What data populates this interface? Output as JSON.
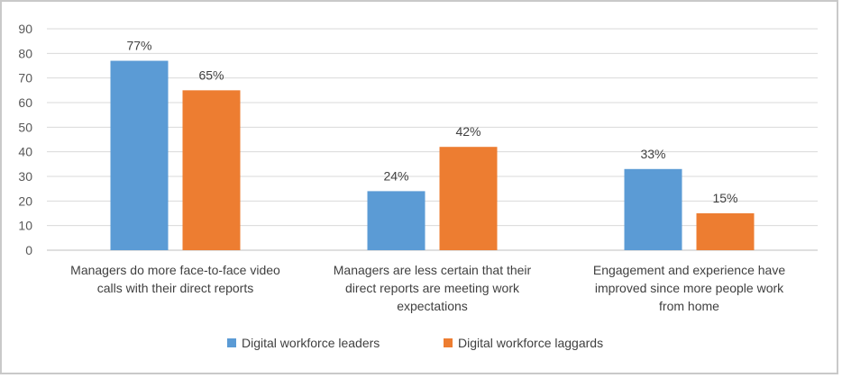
{
  "chart_data": {
    "type": "bar",
    "title": "",
    "xlabel": "",
    "ylabel": "",
    "ylim": [
      0,
      90
    ],
    "yticks": [
      0,
      10,
      20,
      30,
      40,
      50,
      60,
      70,
      80,
      90
    ],
    "grid": true,
    "legend_position": "bottom",
    "categories": [
      [
        "Managers do more face-to-face video",
        "calls with their direct reports"
      ],
      [
        "Managers are less certain that their",
        "direct reports are meeting work",
        "expectations"
      ],
      [
        "Engagement and experience have",
        "improved since more people work",
        "from home"
      ]
    ],
    "series": [
      {
        "name": "Digital workforce leaders",
        "color": "#5b9bd5",
        "values": [
          77,
          24,
          33
        ],
        "labels": [
          "77%",
          "24%",
          "33%"
        ]
      },
      {
        "name": "Digital workforce laggards",
        "color": "#ed7d31",
        "values": [
          65,
          42,
          15
        ],
        "labels": [
          "65%",
          "42%",
          "15%"
        ]
      }
    ]
  }
}
